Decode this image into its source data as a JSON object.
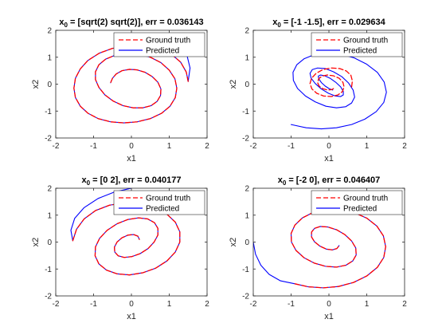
{
  "figure": {
    "background": "#ffffff"
  },
  "chart_data": [
    {
      "type": "line",
      "title_sub": "0",
      "title_main": " = [sqrt(2) sqrt(2)], err = 0.036143",
      "xlabel": "x1",
      "ylabel": "x2",
      "xlim": [
        -2,
        2
      ],
      "ylim": [
        -2,
        2
      ],
      "xticks": [
        -2,
        -1,
        0,
        1,
        2
      ],
      "yticks": [
        -2,
        -1,
        0,
        1,
        2
      ],
      "legend_position": "top-right",
      "series": [
        {
          "name": "Ground truth",
          "style": "dashed",
          "color": "#ff0000",
          "x": [
            1.5,
            1.45,
            1.3,
            1.05,
            0.7,
            0.3,
            -0.1,
            -0.5,
            -0.85,
            -1.15,
            -1.35,
            -1.48,
            -1.52,
            -1.48,
            -1.35,
            -1.15,
            -0.88,
            -0.55,
            -0.2,
            0.15,
            0.5,
            0.8,
            1.02,
            1.16,
            1.2,
            1.15,
            1.0,
            0.78,
            0.5,
            0.2,
            -0.12,
            -0.42,
            -0.68,
            -0.86,
            -0.95,
            -0.95,
            -0.86,
            -0.7,
            -0.48,
            -0.22,
            0.05,
            0.3,
            0.52,
            0.68,
            0.77,
            0.78,
            0.7,
            0.55,
            0.36,
            0.15,
            -0.05,
            -0.25,
            -0.4,
            -0.5,
            -0.55
          ],
          "y": [
            0.1,
            0.45,
            0.82,
            1.12,
            1.32,
            1.43,
            1.43,
            1.33,
            1.15,
            0.88,
            0.57,
            0.22,
            -0.15,
            -0.5,
            -0.82,
            -1.08,
            -1.28,
            -1.4,
            -1.44,
            -1.4,
            -1.28,
            -1.08,
            -0.82,
            -0.5,
            -0.15,
            0.2,
            0.52,
            0.8,
            1.0,
            1.12,
            1.14,
            1.08,
            0.93,
            0.72,
            0.46,
            0.17,
            -0.12,
            -0.4,
            -0.63,
            -0.8,
            -0.88,
            -0.88,
            -0.8,
            -0.64,
            -0.42,
            -0.18,
            0.07,
            0.28,
            0.44,
            0.53,
            0.55,
            0.5,
            0.38,
            0.22,
            0.05
          ]
        },
        {
          "name": "Predicted",
          "style": "solid",
          "color": "#0000ff",
          "x": [
            1.41,
            1.55,
            1.5,
            1.45,
            1.3,
            1.05,
            0.7,
            0.3,
            -0.1,
            -0.5,
            -0.85,
            -1.15,
            -1.35,
            -1.48,
            -1.52,
            -1.48,
            -1.35,
            -1.15,
            -0.88,
            -0.55,
            -0.2,
            0.15,
            0.5,
            0.8,
            1.02,
            1.16,
            1.2,
            1.15,
            1.0,
            0.78,
            0.5,
            0.2,
            -0.12,
            -0.42,
            -0.68,
            -0.86,
            -0.95,
            -0.95,
            -0.86,
            -0.7,
            -0.48,
            -0.22,
            0.05,
            0.3,
            0.52,
            0.68,
            0.77,
            0.78,
            0.7,
            0.55,
            0.36,
            0.15,
            -0.05,
            -0.25,
            -0.4,
            -0.5,
            -0.55
          ],
          "y": [
            1.41,
            0.6,
            0.1,
            0.45,
            0.82,
            1.12,
            1.32,
            1.43,
            1.43,
            1.33,
            1.15,
            0.88,
            0.57,
            0.22,
            -0.15,
            -0.5,
            -0.82,
            -1.08,
            -1.28,
            -1.4,
            -1.44,
            -1.4,
            -1.28,
            -1.08,
            -0.82,
            -0.5,
            -0.15,
            0.2,
            0.52,
            0.8,
            1.0,
            1.12,
            1.14,
            1.08,
            0.93,
            0.72,
            0.46,
            0.17,
            -0.12,
            -0.4,
            -0.63,
            -0.8,
            -0.88,
            -0.88,
            -0.8,
            -0.64,
            -0.42,
            -0.18,
            0.07,
            0.28,
            0.44,
            0.53,
            0.55,
            0.5,
            0.38,
            0.22,
            0.05
          ]
        }
      ]
    },
    {
      "type": "line",
      "title_sub": "0",
      "title_main": " = [-1 -1.5], err = 0.029634",
      "xlabel": "x1",
      "ylabel": "x2",
      "xlim": [
        -2,
        2
      ],
      "ylim": [
        -2,
        2
      ],
      "xticks": [
        -2,
        -1,
        0,
        1,
        2
      ],
      "yticks": [
        -2,
        -1,
        0,
        1,
        2
      ],
      "legend_position": "top-right",
      "series": [
        {
          "name": "Ground truth",
          "style": "dashed",
          "color": "#ff0000",
          "x": [
            0.6,
            0.62,
            0.58,
            0.46,
            0.28,
            0.06,
            -0.16,
            -0.34,
            -0.46,
            -0.5,
            -0.45,
            -0.32,
            -0.14,
            0.06,
            0.24,
            0.36,
            0.4,
            0.37,
            0.27,
            0.12,
            -0.04,
            -0.18,
            -0.27,
            -0.3,
            -0.26,
            -0.16,
            -0.03,
            0.08,
            0.15
          ],
          "y": [
            -0.1,
            0.12,
            0.33,
            0.49,
            0.58,
            0.6,
            0.54,
            0.4,
            0.22,
            0.02,
            -0.18,
            -0.34,
            -0.44,
            -0.46,
            -0.4,
            -0.27,
            -0.1,
            0.07,
            0.22,
            0.31,
            0.34,
            0.3,
            0.2,
            0.06,
            -0.07,
            -0.17,
            -0.22,
            -0.2,
            -0.14
          ]
        },
        {
          "name": "Predicted",
          "style": "solid",
          "color": "#0000ff",
          "x": [
            -1.0,
            -0.6,
            -0.2,
            0.2,
            0.6,
            0.95,
            1.25,
            1.45,
            1.52,
            1.46,
            1.28,
            1.0,
            0.66,
            0.3,
            -0.05,
            -0.38,
            -0.66,
            -0.85,
            -0.95,
            -0.94,
            -0.83,
            -0.62,
            -0.36,
            -0.08,
            0.2,
            0.44,
            0.6,
            0.68,
            0.64,
            0.52,
            0.34,
            0.12,
            -0.1,
            -0.3,
            -0.44,
            -0.5,
            -0.47,
            -0.36,
            -0.2,
            -0.01,
            0.17,
            0.31,
            0.38,
            0.38,
            0.31,
            0.18,
            0.03,
            -0.11,
            -0.22,
            -0.28,
            -0.27,
            -0.2,
            -0.1,
            0.01,
            0.1
          ],
          "y": [
            -1.5,
            -1.62,
            -1.66,
            -1.62,
            -1.5,
            -1.3,
            -1.02,
            -0.68,
            -0.3,
            0.08,
            0.44,
            0.74,
            0.98,
            1.12,
            1.16,
            1.1,
            0.94,
            0.72,
            0.44,
            0.14,
            -0.16,
            -0.44,
            -0.66,
            -0.82,
            -0.88,
            -0.84,
            -0.7,
            -0.48,
            -0.22,
            0.04,
            0.28,
            0.46,
            0.58,
            0.6,
            0.54,
            0.4,
            0.22,
            0.02,
            -0.18,
            -0.34,
            -0.44,
            -0.46,
            -0.4,
            -0.27,
            -0.1,
            0.07,
            0.22,
            0.31,
            0.34,
            0.3,
            0.2,
            0.06,
            -0.07,
            -0.17,
            -0.22
          ]
        }
      ]
    },
    {
      "type": "line",
      "title_sub": "0",
      "title_main": " = [0 2], err = 0.040177",
      "xlabel": "x1",
      "ylabel": "x2",
      "xlim": [
        -2,
        2
      ],
      "ylim": [
        -2,
        2
      ],
      "xticks": [
        -2,
        -1,
        0,
        1,
        2
      ],
      "yticks": [
        -2,
        -1,
        0,
        1,
        2
      ],
      "legend_position": "top-right",
      "series": [
        {
          "name": "Ground truth",
          "style": "dashed",
          "color": "#ff0000",
          "x": [
            -1.55,
            -1.45,
            -1.25,
            -0.95,
            -0.58,
            -0.18,
            0.22,
            0.6,
            0.92,
            1.16,
            1.28,
            1.28,
            1.16,
            0.94,
            0.64,
            0.3,
            -0.05,
            -0.38,
            -0.66,
            -0.86,
            -0.96,
            -0.95,
            -0.84,
            -0.64,
            -0.38,
            -0.09,
            0.19,
            0.43,
            0.61,
            0.7,
            0.7,
            0.6,
            0.44,
            0.23,
            0.01,
            -0.19,
            -0.35,
            -0.44,
            -0.45,
            -0.38,
            -0.25,
            -0.09,
            0.06,
            0.17,
            0.21
          ],
          "y": [
            0.05,
            0.48,
            0.86,
            1.17,
            1.37,
            1.46,
            1.44,
            1.3,
            1.06,
            0.74,
            0.38,
            0.0,
            -0.37,
            -0.7,
            -0.97,
            -1.14,
            -1.22,
            -1.18,
            -1.04,
            -0.81,
            -0.51,
            -0.18,
            0.14,
            0.44,
            0.68,
            0.84,
            0.9,
            0.86,
            0.72,
            0.51,
            0.26,
            0.0,
            -0.24,
            -0.43,
            -0.54,
            -0.57,
            -0.51,
            -0.37,
            -0.19,
            0.0,
            0.16,
            0.26,
            0.28,
            0.22,
            0.1
          ]
        },
        {
          "name": "Predicted",
          "style": "solid",
          "color": "#0000ff",
          "x": [
            0.0,
            -0.45,
            -0.88,
            -1.25,
            -1.5,
            -1.6,
            -1.55,
            -1.45,
            -1.25,
            -0.95,
            -0.58,
            -0.18,
            0.22,
            0.6,
            0.92,
            1.16,
            1.28,
            1.28,
            1.16,
            0.94,
            0.64,
            0.3,
            -0.05,
            -0.38,
            -0.66,
            -0.86,
            -0.96,
            -0.95,
            -0.84,
            -0.64,
            -0.38,
            -0.09,
            0.19,
            0.43,
            0.61,
            0.7,
            0.7,
            0.6,
            0.44,
            0.23,
            0.01,
            -0.19,
            -0.35,
            -0.44,
            -0.45,
            -0.38,
            -0.25,
            -0.09,
            0.06,
            0.17,
            0.21
          ],
          "y": [
            2.0,
            1.86,
            1.62,
            1.28,
            0.88,
            0.44,
            0.05,
            0.48,
            0.86,
            1.17,
            1.37,
            1.46,
            1.44,
            1.3,
            1.06,
            0.74,
            0.38,
            0.0,
            -0.37,
            -0.7,
            -0.97,
            -1.14,
            -1.22,
            -1.18,
            -1.04,
            -0.81,
            -0.51,
            -0.18,
            0.14,
            0.44,
            0.68,
            0.84,
            0.9,
            0.86,
            0.72,
            0.51,
            0.26,
            0.0,
            -0.24,
            -0.43,
            -0.54,
            -0.57,
            -0.51,
            -0.37,
            -0.19,
            0.0,
            0.16,
            0.26,
            0.28,
            0.22,
            0.1
          ]
        }
      ]
    },
    {
      "type": "line",
      "title_sub": "0",
      "title_main": " = [-2 0], err = 0.046407",
      "xlabel": "x1",
      "ylabel": "x2",
      "xlim": [
        -2,
        2
      ],
      "ylim": [
        -2,
        2
      ],
      "xticks": [
        -2,
        -1,
        0,
        1,
        2
      ],
      "yticks": [
        -2,
        -1,
        0,
        1,
        2
      ],
      "legend_position": "top-right",
      "series": [
        {
          "name": "Ground truth",
          "style": "dashed",
          "color": "#ff0000",
          "x": [
            -0.9,
            -0.55,
            -0.15,
            0.25,
            0.65,
            1.0,
            1.28,
            1.45,
            1.5,
            1.44,
            1.27,
            1.0,
            0.66,
            0.29,
            -0.08,
            -0.42,
            -0.7,
            -0.9,
            -1.0,
            -0.99,
            -0.87,
            -0.66,
            -0.39,
            -0.09,
            0.2,
            0.45,
            0.63,
            0.72,
            0.71,
            0.6,
            0.42,
            0.2,
            -0.03,
            -0.23,
            -0.38,
            -0.46,
            -0.46,
            -0.38,
            -0.24,
            -0.07,
            0.09,
            0.21,
            0.27
          ],
          "y": [
            -1.55,
            -1.66,
            -1.7,
            -1.65,
            -1.5,
            -1.26,
            -0.94,
            -0.57,
            -0.17,
            0.23,
            0.59,
            0.89,
            1.1,
            1.21,
            1.21,
            1.1,
            0.9,
            0.63,
            0.32,
            0.0,
            -0.31,
            -0.58,
            -0.78,
            -0.9,
            -0.93,
            -0.86,
            -0.7,
            -0.48,
            -0.22,
            0.04,
            0.28,
            0.46,
            0.56,
            0.58,
            0.51,
            0.37,
            0.19,
            0.01,
            -0.15,
            -0.26,
            -0.29,
            -0.24,
            -0.13
          ]
        },
        {
          "name": "Predicted",
          "style": "solid",
          "color": "#0000ff",
          "x": [
            -2.0,
            -1.94,
            -1.8,
            -1.58,
            -1.28,
            -0.9,
            -0.55,
            -0.15,
            0.25,
            0.65,
            1.0,
            1.28,
            1.45,
            1.5,
            1.44,
            1.27,
            1.0,
            0.66,
            0.29,
            -0.08,
            -0.42,
            -0.7,
            -0.9,
            -1.0,
            -0.99,
            -0.87,
            -0.66,
            -0.39,
            -0.09,
            0.2,
            0.45,
            0.63,
            0.72,
            0.71,
            0.6,
            0.42,
            0.2,
            -0.03,
            -0.23,
            -0.38,
            -0.46,
            -0.46,
            -0.38,
            -0.24,
            -0.07,
            0.09,
            0.21,
            0.27
          ],
          "y": [
            0.0,
            -0.45,
            -0.86,
            -1.2,
            -1.44,
            -1.55,
            -1.66,
            -1.7,
            -1.65,
            -1.5,
            -1.26,
            -0.94,
            -0.57,
            -0.17,
            0.23,
            0.59,
            0.89,
            1.1,
            1.21,
            1.21,
            1.1,
            0.9,
            0.63,
            0.32,
            0.0,
            -0.31,
            -0.58,
            -0.78,
            -0.9,
            -0.93,
            -0.86,
            -0.7,
            -0.48,
            -0.22,
            0.04,
            0.28,
            0.46,
            0.56,
            0.58,
            0.51,
            0.37,
            0.19,
            0.01,
            -0.15,
            -0.26,
            -0.29,
            -0.24,
            -0.13
          ]
        }
      ]
    }
  ]
}
